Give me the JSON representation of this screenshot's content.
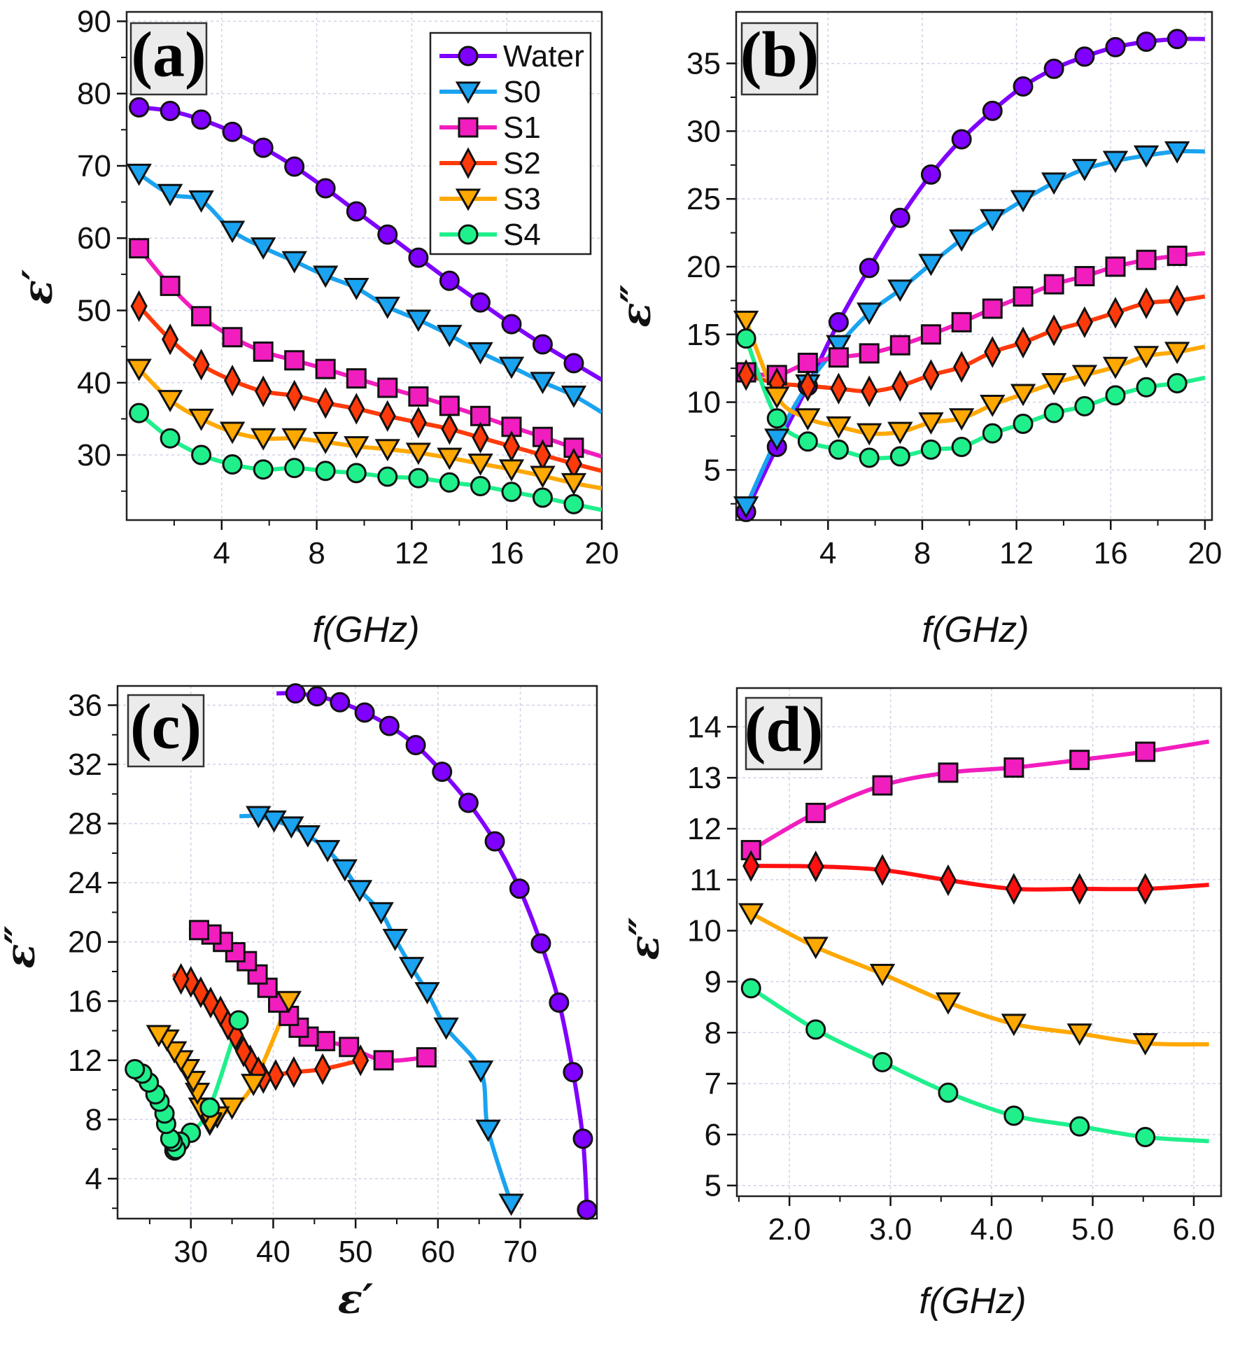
{
  "series_style": {
    "Water": {
      "color": "#7f00ff",
      "marker": "circle"
    },
    "S0": {
      "color": "#1aa3f0",
      "marker": "triangle-down"
    },
    "S1": {
      "color": "#f21dbf",
      "marker": "square"
    },
    "S2": {
      "color": "#ff3a0a",
      "marker": "diamond"
    },
    "S3": {
      "color": "#ffa800",
      "marker": "triangle-down"
    },
    "S4": {
      "color": "#1ff08c",
      "marker": "circle"
    }
  },
  "chart_data": [
    {
      "panel": "(a)",
      "type": "line",
      "xlabel": "f(GHz)",
      "ylabel": "ε′",
      "xlim": [
        0,
        20
      ],
      "ylim": [
        21,
        91.3
      ],
      "xticks": [
        "4",
        "8",
        "12",
        "16",
        "20"
      ],
      "yticks": [
        "30",
        "40",
        "50",
        "60",
        "70",
        "80",
        "90"
      ],
      "grid": true,
      "legend": "top-right",
      "legend_entries": [
        "Water",
        "S0",
        "S1",
        "S2",
        "S3",
        "S4"
      ],
      "x": [
        0.52,
        1.83,
        3.14,
        4.45,
        5.75,
        7.06,
        8.37,
        9.67,
        10.98,
        12.28,
        13.59,
        14.89,
        16.2,
        17.51,
        18.82,
        20
      ],
      "series": [
        {
          "name": "Water",
          "values": [
            78.1,
            77.6,
            76.4,
            74.7,
            72.5,
            69.9,
            66.9,
            63.7,
            60.5,
            57.3,
            54.1,
            51.1,
            48.1,
            45.3,
            42.7,
            40.4
          ]
        },
        {
          "name": "S0",
          "values": [
            68.9,
            66.1,
            65.2,
            61.0,
            58.7,
            56.8,
            54.8,
            53.1,
            50.5,
            48.7,
            46.6,
            44.2,
            42.2,
            40.1,
            38.2,
            35.9
          ]
        },
        {
          "name": "S1",
          "values": [
            58.6,
            53.4,
            49.2,
            46.3,
            44.3,
            43.1,
            41.9,
            40.6,
            39.3,
            38.1,
            36.8,
            35.4,
            33.9,
            32.5,
            31.0,
            29.8
          ]
        },
        {
          "name": "S2",
          "values": [
            50.6,
            46.0,
            42.5,
            40.3,
            38.8,
            38.2,
            37.2,
            36.4,
            35.4,
            34.5,
            33.6,
            32.4,
            31.2,
            30.0,
            28.8,
            27.8
          ]
        },
        {
          "name": "S3",
          "values": [
            41.9,
            37.6,
            35.0,
            33.2,
            32.3,
            32.3,
            31.8,
            31.2,
            30.8,
            30.3,
            29.6,
            28.8,
            28.0,
            27.1,
            26.1,
            25.4
          ]
        },
        {
          "name": "S4",
          "values": [
            35.8,
            32.3,
            30.0,
            28.7,
            28.0,
            28.2,
            27.8,
            27.5,
            27.0,
            26.8,
            26.2,
            25.7,
            24.9,
            24.1,
            23.2,
            22.4
          ]
        }
      ]
    },
    {
      "panel": "(b)",
      "type": "line",
      "xlabel": "f(GHz)",
      "ylabel": "ε″",
      "xlim": [
        0.1,
        20.3
      ],
      "ylim": [
        1.3,
        38.8
      ],
      "xticks": [
        "4",
        "8",
        "12",
        "16",
        "20"
      ],
      "yticks": [
        "5",
        "10",
        "15",
        "20",
        "25",
        "30",
        "35"
      ],
      "grid": true,
      "x": [
        0.52,
        1.83,
        3.14,
        4.45,
        5.75,
        7.06,
        8.37,
        9.67,
        10.98,
        12.28,
        13.59,
        14.89,
        16.2,
        17.51,
        18.82,
        20
      ],
      "series": [
        {
          "name": "Water",
          "values": [
            1.9,
            6.7,
            11.2,
            15.9,
            19.9,
            23.6,
            26.8,
            29.4,
            31.5,
            33.3,
            34.6,
            35.5,
            36.2,
            36.6,
            36.8,
            36.8
          ]
        },
        {
          "name": "S0",
          "values": [
            2.3,
            7.3,
            11.3,
            14.2,
            16.6,
            18.3,
            20.2,
            22.0,
            23.5,
            24.9,
            26.2,
            27.2,
            27.8,
            28.2,
            28.5,
            28.5
          ]
        },
        {
          "name": "S1",
          "values": [
            12.2,
            12.0,
            12.9,
            13.3,
            13.6,
            14.2,
            15.0,
            15.9,
            16.9,
            17.8,
            18.7,
            19.3,
            20.0,
            20.5,
            20.8,
            21.0
          ]
        },
        {
          "name": "S2",
          "values": [
            12.0,
            11.4,
            11.2,
            11.0,
            10.8,
            11.2,
            12.0,
            12.6,
            13.7,
            14.4,
            15.3,
            15.9,
            16.6,
            17.3,
            17.5,
            17.8
          ]
        },
        {
          "name": "S3",
          "values": [
            16.0,
            10.4,
            8.8,
            8.2,
            7.7,
            7.8,
            8.5,
            8.8,
            9.8,
            10.6,
            11.4,
            12.0,
            12.6,
            13.4,
            13.7,
            14.1
          ]
        },
        {
          "name": "S4",
          "values": [
            14.7,
            8.8,
            7.1,
            6.5,
            5.9,
            6.0,
            6.5,
            6.7,
            7.7,
            8.4,
            9.2,
            9.7,
            10.5,
            11.1,
            11.4,
            11.8
          ]
        }
      ]
    },
    {
      "panel": "(c)",
      "type": "scatter",
      "xlabel": "ε′",
      "ylabel": "ε″",
      "xlim": [
        21.1,
        79.3
      ],
      "ylim": [
        1.3,
        37.3
      ],
      "xticks": [
        "30",
        "40",
        "50",
        "60",
        "70"
      ],
      "yticks": [
        "4",
        "8",
        "12",
        "16",
        "20",
        "24",
        "28",
        "32",
        "36"
      ],
      "grid": true,
      "series_source": "x from panel (a), y from panel (b) at matching frequencies",
      "series": [
        {
          "name": "Water"
        },
        {
          "name": "S0"
        },
        {
          "name": "S1"
        },
        {
          "name": "S2"
        },
        {
          "name": "S3"
        },
        {
          "name": "S4"
        }
      ]
    },
    {
      "panel": "(d)",
      "type": "line",
      "xlabel": "f(GHz)",
      "ylabel": "ε″",
      "xlim": [
        1.48,
        6.27
      ],
      "ylim": [
        4.79,
        14.76
      ],
      "xticks": [
        "2.0",
        "3.0",
        "4.0",
        "5.0",
        "6.0"
      ],
      "yticks": [
        "5",
        "6",
        "7",
        "8",
        "9",
        "10",
        "11",
        "12",
        "13",
        "14"
      ],
      "grid": true,
      "x": [
        1.62,
        2.26,
        2.92,
        3.57,
        4.22,
        4.87,
        5.52,
        6.15
      ],
      "series": [
        {
          "name": "S1",
          "values": [
            11.58,
            12.31,
            12.85,
            13.1,
            13.2,
            13.35,
            13.51,
            13.71
          ]
        },
        {
          "name": "S2",
          "values": [
            11.27,
            11.26,
            11.19,
            10.99,
            10.82,
            10.82,
            10.82,
            10.9
          ],
          "color": "#ff1010"
        },
        {
          "name": "S3",
          "values": [
            10.34,
            9.68,
            9.15,
            8.59,
            8.17,
            7.98,
            7.79,
            7.77
          ]
        },
        {
          "name": "S4",
          "values": [
            8.87,
            8.06,
            7.42,
            6.82,
            6.37,
            6.16,
            5.95,
            5.87
          ]
        }
      ]
    }
  ]
}
